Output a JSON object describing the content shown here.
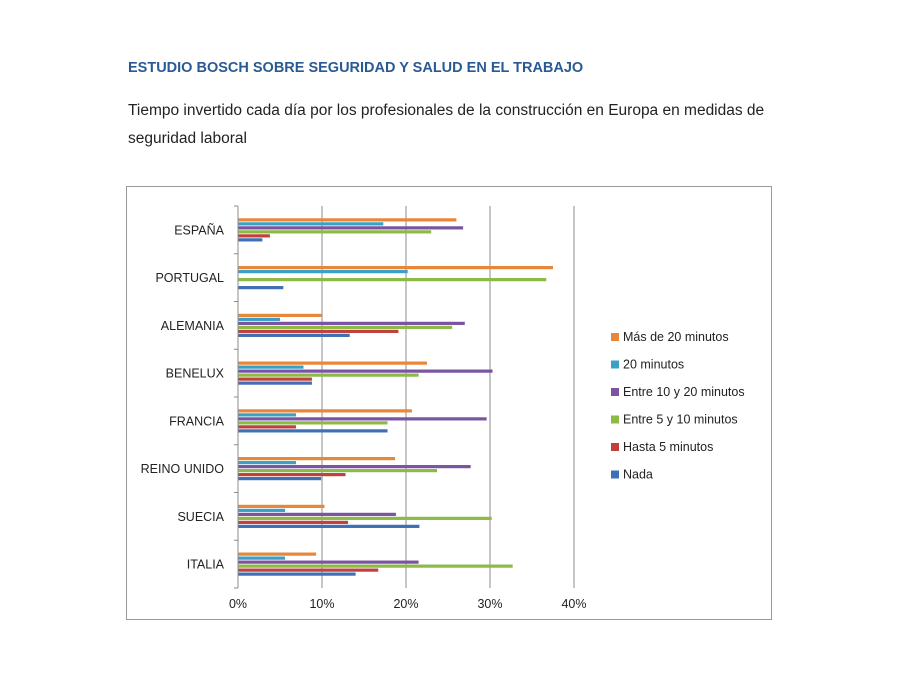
{
  "header": {
    "title": "ESTUDIO BOSCH SOBRE SEGURIDAD Y SALUD EN EL TRABAJO",
    "subtitle": "Tiempo invertido cada día por los profesionales de la construcción en Europa en medidas de seguridad laboral"
  },
  "chart_data": {
    "type": "bar",
    "orientation": "horizontal",
    "title": "",
    "xlabel": "",
    "ylabel": "",
    "xlim": [
      0,
      40
    ],
    "x_ticks": [
      "0%",
      "10%",
      "20%",
      "30%",
      "40%"
    ],
    "grid": true,
    "legend_position": "right",
    "categories": [
      "ESPAÑA",
      "PORTUGAL",
      "ALEMANIA",
      "BENELUX",
      "FRANCIA",
      "REINO UNIDO",
      "SUECIA",
      "ITALIA"
    ],
    "series": [
      {
        "name": "Más de 20 minutos",
        "color": "#e8863a",
        "values": [
          26,
          37.5,
          10,
          22.5,
          20.7,
          18.7,
          10.3,
          9.3
        ]
      },
      {
        "name": "20 minutos",
        "color": "#3aa1c4",
        "values": [
          17.3,
          20.2,
          5,
          7.8,
          6.9,
          6.9,
          5.6,
          5.6
        ]
      },
      {
        "name": "Entre 10 y 20 minutos",
        "color": "#7a53a3",
        "values": [
          26.8,
          0,
          27,
          30.3,
          29.6,
          27.7,
          18.8,
          21.5
        ]
      },
      {
        "name": "Entre 5 y 10 minutos",
        "color": "#8db945",
        "values": [
          23,
          36.7,
          25.5,
          21.5,
          17.8,
          23.7,
          30.2,
          32.7
        ]
      },
      {
        "name": "Hasta 5 minutos",
        "color": "#c0413c",
        "values": [
          3.8,
          0,
          19.1,
          8.8,
          6.9,
          12.8,
          13.1,
          16.7
        ]
      },
      {
        "name": "Nada",
        "color": "#3f6fb5",
        "values": [
          2.9,
          5.4,
          13.3,
          8.8,
          17.8,
          9.9,
          21.6,
          14
        ]
      }
    ]
  }
}
